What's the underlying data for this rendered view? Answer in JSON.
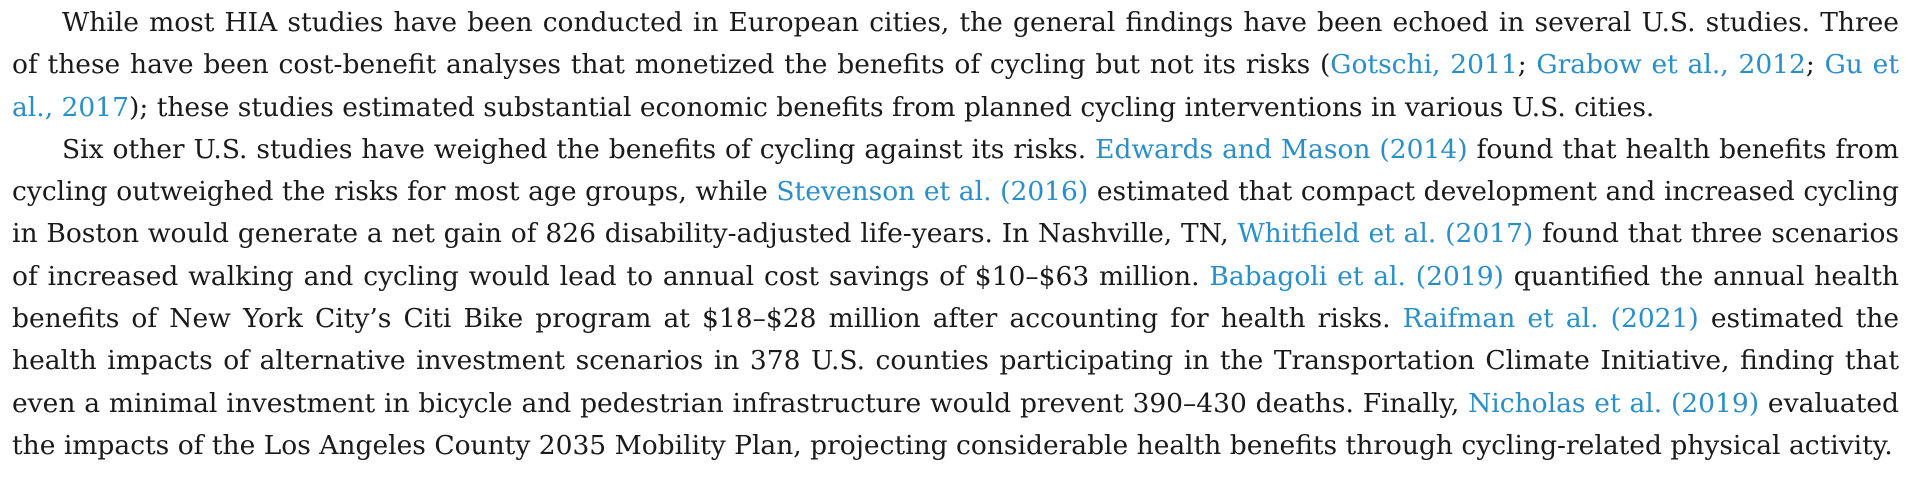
{
  "paragraph1": {
    "t1": "While most HIA studies have been conducted in European cities, the general findings have been echoed in several U.S. studies. Three of these have been cost-benefit analyses that monetized the benefits of cycling but not its risks (",
    "c1": "Gotschi, 2011",
    "s1": "; ",
    "c2": "Grabow et al., 2012",
    "s2": "; ",
    "c3": "Gu et al., 2017",
    "t2": "); these studies estimated substantial economic benefits from planned cycling interventions in various U.S. cities."
  },
  "paragraph2": {
    "t1": "Six other U.S. studies have weighed the benefits of cycling against its risks. ",
    "c1": "Edwards and Mason (2014)",
    "t2": " found that health benefits from cycling outweighed the risks for most age groups, while ",
    "c2": "Stevenson et al. (2016)",
    "t3": " estimated that compact development and increased cycling in Boston would generate a net gain of 826 disability-adjusted life-years. In Nashville, TN, ",
    "c3": "Whitfield et al. (2017)",
    "t4": " found that three scenarios of increased walking and cycling would lead to annual cost savings of $10–$63 million. ",
    "c4": "Babagoli et al. (2019)",
    "t5": " quantified the annual health benefits of New York City’s Citi Bike program at $18–$28 million after accounting for health risks. ",
    "c5": "Raifman et al. (2021)",
    "t6": " estimated the health impacts of alternative investment scenarios in 378 U.S. counties participating in the Transportation Climate Initiative, finding that even a minimal investment in bicycle and pedestrian infrastructure would prevent 390–430 deaths. Finally, ",
    "c6": "Nicholas et al. (2019)",
    "t7": " evaluated the impacts of the Los Angeles County 2035 Mobility Plan, projecting considerable health benefits through cycling-related physical activity."
  },
  "colors": {
    "text": "#1a1a1a",
    "citation_link": "#2a8fc9",
    "background": "#ffffff"
  }
}
